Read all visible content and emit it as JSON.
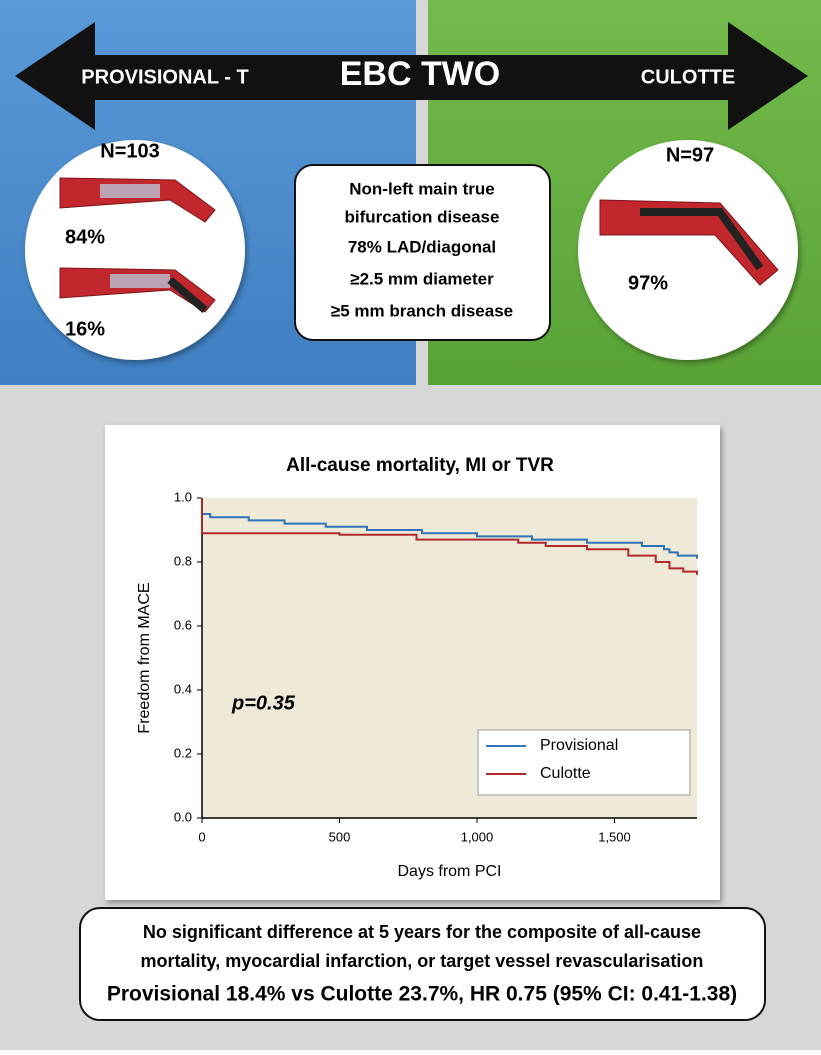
{
  "header": {
    "left_label": "PROVISIONAL - T",
    "title": "EBC TWO",
    "right_label": "CULOTTE"
  },
  "left_panel": {
    "n": "N=103",
    "pct_top": "84%",
    "pct_bottom": "16%"
  },
  "right_panel": {
    "n": "N=97",
    "pct": "97%"
  },
  "criteria": [
    "Non-left main true",
    "bifurcation disease",
    "78% LAD/diagonal",
    "≥2.5 mm diameter",
    "≥5 mm branch disease"
  ],
  "chart_data": {
    "type": "line",
    "step": true,
    "title": "All-cause mortality, MI or TVR",
    "x_label": "Days from PCI",
    "y_label": "Freedom from MACE",
    "annotation": "p=0.35",
    "xlim": [
      0,
      1800
    ],
    "ylim": [
      0,
      1
    ],
    "xticks": [
      0,
      500,
      {
        "value": 1000,
        "label": "1,000"
      },
      {
        "value": 1500,
        "label": "1,500"
      }
    ],
    "yticks": [
      {
        "value": 0,
        "label": "0.0"
      },
      0.2,
      0.4,
      0.6,
      0.8,
      {
        "value": 1,
        "label": "1.0"
      }
    ],
    "legend": "lower right",
    "series": [
      {
        "name": "Provisional",
        "color": "#2f73b8",
        "x": [
          0,
          0,
          30,
          170,
          300,
          450,
          600,
          800,
          1000,
          1200,
          1400,
          1600,
          1680,
          1700,
          1730,
          1800
        ],
        "values": [
          1.0,
          0.95,
          0.94,
          0.93,
          0.92,
          0.91,
          0.9,
          0.89,
          0.88,
          0.87,
          0.86,
          0.85,
          0.84,
          0.83,
          0.82,
          0.81
        ]
      },
      {
        "name": "Culotte",
        "color": "#b0282a",
        "x": [
          0,
          0,
          500,
          780,
          1150,
          1250,
          1400,
          1550,
          1650,
          1700,
          1750,
          1800
        ],
        "values": [
          1.0,
          0.89,
          0.885,
          0.87,
          0.86,
          0.85,
          0.84,
          0.82,
          0.8,
          0.78,
          0.77,
          0.76
        ]
      }
    ]
  },
  "summary": [
    "No significant difference at 5 years for the composite of all-cause",
    "mortality, myocardial infarction, or target vessel revascularisation",
    "Provisional 18.4% vs Culotte 23.7%, HR 0.75 (95% CI: 0.41-1.38)"
  ]
}
